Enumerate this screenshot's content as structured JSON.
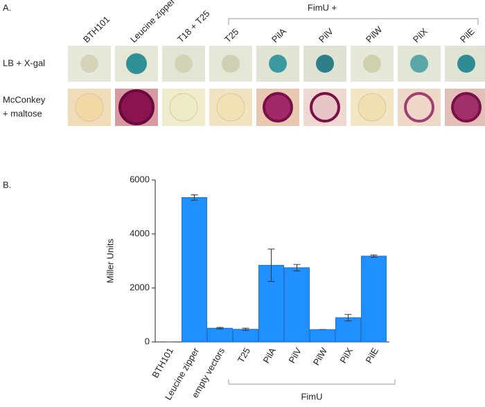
{
  "panel_a": {
    "label": "A.",
    "group_label": "FimU +",
    "columns": [
      "BTH101",
      "Leucine zipper",
      "T18 + T25",
      "T25",
      "PilA",
      "PilV",
      "PilW",
      "PilX",
      "PilE"
    ],
    "rows": [
      "LB + X-gal",
      "McConkey",
      "+ maltose"
    ]
  },
  "chart_data": {
    "type": "bar",
    "panel_label": "B.",
    "ylabel": "Miller Units",
    "group_label": "FimU",
    "categories": [
      "BTH101",
      "Leucine zipper",
      "empty vectors",
      "T25",
      "PilA",
      "PilV",
      "PilW",
      "PilX",
      "PilE"
    ],
    "values": [
      0,
      5350,
      510,
      470,
      2840,
      2750,
      460,
      900,
      3180
    ],
    "errors": [
      0,
      100,
      30,
      40,
      600,
      120,
      0,
      120,
      40
    ],
    "color": "#1e90ff",
    "ylim": [
      0,
      6000
    ],
    "yticks": [
      0,
      2000,
      4000,
      6000
    ],
    "grid": false
  }
}
